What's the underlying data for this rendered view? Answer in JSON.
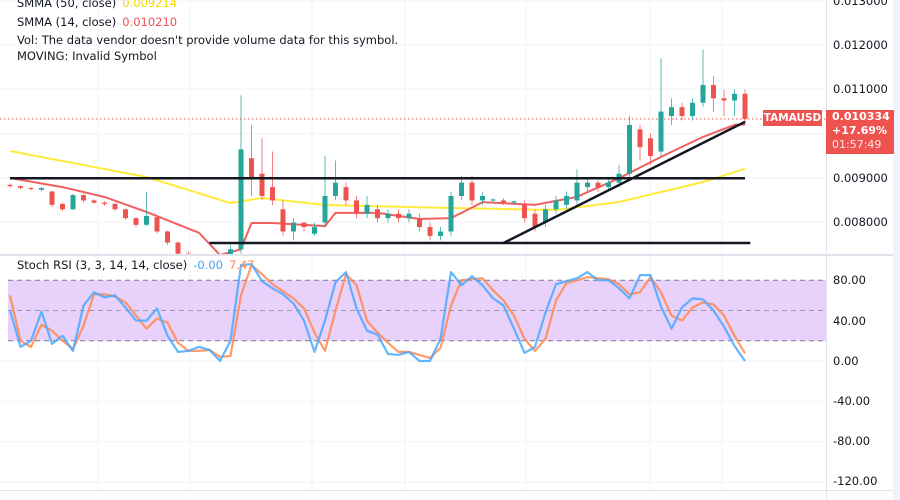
{
  "legend": {
    "smma50_label": "SMMA (50, close)",
    "smma50_value": "0.009214",
    "smma14_label": "SMMA (14, close)",
    "smma14_value": "0.010210",
    "vol_note": "Vol: The data vendor doesn't provide volume data for this symbol.",
    "moving_note": "MOVING: Invalid Symbol",
    "stoch_label": "Stoch RSI (3, 3, 14, 14, close)",
    "stoch_k_value": "-0.00",
    "stoch_d_value": "7.47"
  },
  "price_tag": {
    "symbol": "TAMAUSD",
    "price": "0.010334",
    "change": "+17.69%",
    "countdown": "01:57:49"
  },
  "colors": {
    "up": "#26a69a",
    "down": "#ef5350",
    "smma50": "#ffeb3b",
    "smma14": "#f06060",
    "stoch_k": "#4aa8ff",
    "stoch_d": "#ff8a50",
    "band": "#e6ccfb",
    "trendline": "#131722"
  },
  "chart_data": [
    {
      "type": "candlestick",
      "symbol": "TAMAUSD",
      "price_axis_ticks": [
        "0.013000",
        "0.012000",
        "0.011000",
        "0.009000",
        "0.008000"
      ],
      "ylim": [
        0.0074,
        0.013
      ],
      "last_price": 0.010334,
      "candles_ohlc": [
        [
          0.00885,
          0.00888,
          0.00878,
          0.00882
        ],
        [
          0.00882,
          0.00884,
          0.00875,
          0.00878
        ],
        [
          0.00878,
          0.0088,
          0.00872,
          0.00876
        ],
        [
          0.00874,
          0.0088,
          0.0087,
          0.00878
        ],
        [
          0.0087,
          0.00872,
          0.00835,
          0.0084
        ],
        [
          0.00842,
          0.00845,
          0.00825,
          0.0083
        ],
        [
          0.0083,
          0.00865,
          0.00828,
          0.00862
        ],
        [
          0.00862,
          0.00866,
          0.00845,
          0.0085
        ],
        [
          0.0085,
          0.00852,
          0.00842,
          0.00845
        ],
        [
          0.00845,
          0.00848,
          0.00838,
          0.00842
        ],
        [
          0.00842,
          0.00845,
          0.00826,
          0.0083
        ],
        [
          0.0083,
          0.00832,
          0.00806,
          0.0081
        ],
        [
          0.0081,
          0.00812,
          0.0079,
          0.00795
        ],
        [
          0.00795,
          0.0087,
          0.00792,
          0.00815
        ],
        [
          0.00812,
          0.00815,
          0.00776,
          0.0078
        ],
        [
          0.0078,
          0.00782,
          0.0075,
          0.00755
        ],
        [
          0.00755,
          0.00758,
          0.0072,
          0.0073
        ],
        [
          0.0073,
          0.00735,
          0.007,
          0.0071
        ],
        [
          0.0071,
          0.00725,
          0.0069,
          0.0072
        ],
        [
          0.0072,
          0.00728,
          0.0069,
          0.007
        ],
        [
          0.007,
          0.0072,
          0.0068,
          0.0071
        ],
        [
          0.0071,
          0.0075,
          0.007,
          0.0074
        ],
        [
          0.0074,
          0.01087,
          0.0073,
          0.00965
        ],
        [
          0.00945,
          0.0102,
          0.0086,
          0.009
        ],
        [
          0.0091,
          0.0099,
          0.0085,
          0.0086
        ],
        [
          0.0088,
          0.0096,
          0.0084,
          0.0085
        ],
        [
          0.0083,
          0.0085,
          0.0077,
          0.0078
        ],
        [
          0.0078,
          0.0081,
          0.0076,
          0.008
        ],
        [
          0.008,
          0.008,
          0.0078,
          0.0079
        ],
        [
          0.00775,
          0.008,
          0.0077,
          0.0079
        ],
        [
          0.008,
          0.0095,
          0.0079,
          0.0086
        ],
        [
          0.0086,
          0.0094,
          0.0085,
          0.0089
        ],
        [
          0.0088,
          0.0089,
          0.0084,
          0.0085
        ],
        [
          0.0085,
          0.0086,
          0.0081,
          0.0082
        ],
        [
          0.0082,
          0.0086,
          0.0081,
          0.0084
        ],
        [
          0.0083,
          0.0084,
          0.008,
          0.0081
        ],
        [
          0.0081,
          0.0083,
          0.008,
          0.0082
        ],
        [
          0.0082,
          0.0083,
          0.008,
          0.0081
        ],
        [
          0.0081,
          0.0083,
          0.008,
          0.0082
        ],
        [
          0.0081,
          0.0082,
          0.0078,
          0.0079
        ],
        [
          0.0079,
          0.008,
          0.0076,
          0.0077
        ],
        [
          0.0077,
          0.0079,
          0.0076,
          0.0078
        ],
        [
          0.0078,
          0.0087,
          0.0077,
          0.0086
        ],
        [
          0.0086,
          0.00905,
          0.0085,
          0.0089
        ],
        [
          0.0089,
          0.00905,
          0.0084,
          0.0085
        ],
        [
          0.0085,
          0.0087,
          0.0084,
          0.0086
        ],
        [
          0.0085,
          0.00855,
          0.00845,
          0.00852
        ],
        [
          0.0085,
          0.00855,
          0.0084,
          0.00845
        ],
        [
          0.00845,
          0.0085,
          0.0084,
          0.00848
        ],
        [
          0.0084,
          0.0085,
          0.008,
          0.0081
        ],
        [
          0.0082,
          0.0083,
          0.0078,
          0.0079
        ],
        [
          0.008,
          0.0084,
          0.0079,
          0.0083
        ],
        [
          0.0083,
          0.0086,
          0.0082,
          0.0085
        ],
        [
          0.0084,
          0.0087,
          0.0083,
          0.0086
        ],
        [
          0.0085,
          0.0092,
          0.0084,
          0.0089
        ],
        [
          0.0088,
          0.009,
          0.0087,
          0.0089
        ],
        [
          0.0089,
          0.00895,
          0.0087,
          0.0088
        ],
        [
          0.0088,
          0.009,
          0.0087,
          0.0089
        ],
        [
          0.0089,
          0.0093,
          0.0088,
          0.0091
        ],
        [
          0.0091,
          0.0104,
          0.009,
          0.0102
        ],
        [
          0.0101,
          0.0102,
          0.0094,
          0.0097
        ],
        [
          0.0099,
          0.01,
          0.0093,
          0.0095
        ],
        [
          0.0096,
          0.0117,
          0.0095,
          0.0105
        ],
        [
          0.0104,
          0.0108,
          0.0102,
          0.0106
        ],
        [
          0.0106,
          0.0107,
          0.0103,
          0.0104
        ],
        [
          0.0104,
          0.0108,
          0.0103,
          0.0107
        ],
        [
          0.0107,
          0.0119,
          0.0106,
          0.0111
        ],
        [
          0.0111,
          0.0113,
          0.0105,
          0.0108
        ],
        [
          0.0108,
          0.011,
          0.0104,
          0.01075
        ],
        [
          0.01075,
          0.011,
          0.0104,
          0.0109
        ],
        [
          0.0109,
          0.011,
          0.0102,
          0.010334
        ]
      ],
      "series": [
        {
          "name": "SMMA (50, close)",
          "points_bar_value": [
            [
              0,
              0.009613
            ],
            [
              13,
              0.009027
            ],
            [
              21,
              0.008441
            ],
            [
              24,
              0.008554
            ],
            [
              30,
              0.008396
            ],
            [
              42,
              0.008329
            ],
            [
              52,
              0.008284
            ],
            [
              58,
              0.008464
            ],
            [
              66,
              0.008914
            ],
            [
              70,
              0.009214
            ]
          ]
        },
        {
          "name": "SMMA (14, close)",
          "points_bar_value": [
            [
              0,
              0.009004
            ],
            [
              5,
              0.0088
            ],
            [
              9,
              0.008577
            ],
            [
              13,
              0.00824
            ],
            [
              18,
              0.00777
            ],
            [
              20,
              0.00727
            ],
            [
              22,
              0.0074
            ],
            [
              23,
              0.00799
            ],
            [
              25,
              0.00799
            ],
            [
              30,
              0.00792
            ],
            [
              31,
              0.00822
            ],
            [
              35,
              0.00822
            ],
            [
              39,
              0.00808
            ],
            [
              42,
              0.0081
            ],
            [
              45,
              0.00846
            ],
            [
              50,
              0.0084
            ],
            [
              54,
              0.00858
            ],
            [
              58,
              0.009
            ],
            [
              62,
              0.00948
            ],
            [
              66,
              0.00993
            ],
            [
              69,
              0.0102
            ],
            [
              70,
              0.01021
            ]
          ]
        }
      ],
      "trendlines": [
        {
          "from": [
            0,
            0.009
          ],
          "to": [
            70,
            0.009
          ]
        },
        {
          "from": [
            19,
            0.00754
          ],
          "to": [
            70.5,
            0.00754
          ]
        },
        {
          "from": [
            47,
            0.00754
          ],
          "to": [
            70,
            0.01027
          ]
        }
      ]
    },
    {
      "type": "line",
      "title": "Stoch RSI (3, 3, 14, 14, close)",
      "axis_ticks": [
        "80.00",
        "40.00",
        "0.00",
        "-40.00",
        "-80.00",
        "-120.00"
      ],
      "ylim": [
        -120,
        80
      ],
      "bands": {
        "upper": 80,
        "middle": 50,
        "lower": 20
      },
      "series": [
        {
          "name": "K",
          "values": [
            50,
            14,
            20,
            49,
            17,
            25,
            10,
            55,
            68,
            63,
            65,
            53,
            40,
            40,
            52,
            25,
            9,
            10,
            14,
            11,
            0,
            20,
            95,
            96,
            79,
            72,
            66,
            57,
            40,
            9,
            40,
            78,
            88,
            52,
            30,
            26,
            7,
            6,
            9,
            0,
            0,
            22,
            88,
            75,
            84,
            75,
            62,
            55,
            32,
            8,
            14,
            48,
            76,
            79,
            82,
            88,
            80,
            80,
            72,
            62,
            85,
            85,
            54,
            32,
            53,
            62,
            61,
            50,
            34,
            15,
            0
          ]
        },
        {
          "name": "D",
          "values": [
            65,
            20,
            14,
            36,
            30,
            20,
            12,
            35,
            66,
            66,
            64,
            58,
            45,
            32,
            42,
            38,
            18,
            10,
            10,
            11,
            4,
            5,
            65,
            95,
            86,
            76,
            69,
            62,
            52,
            28,
            10,
            50,
            86,
            75,
            40,
            28,
            18,
            9,
            9,
            6,
            3,
            13,
            55,
            80,
            81,
            82,
            70,
            60,
            45,
            22,
            10,
            22,
            60,
            77,
            80,
            83,
            82,
            81,
            76,
            66,
            68,
            83,
            68,
            45,
            40,
            53,
            58,
            56,
            45,
            25,
            7.47
          ]
        }
      ]
    }
  ]
}
